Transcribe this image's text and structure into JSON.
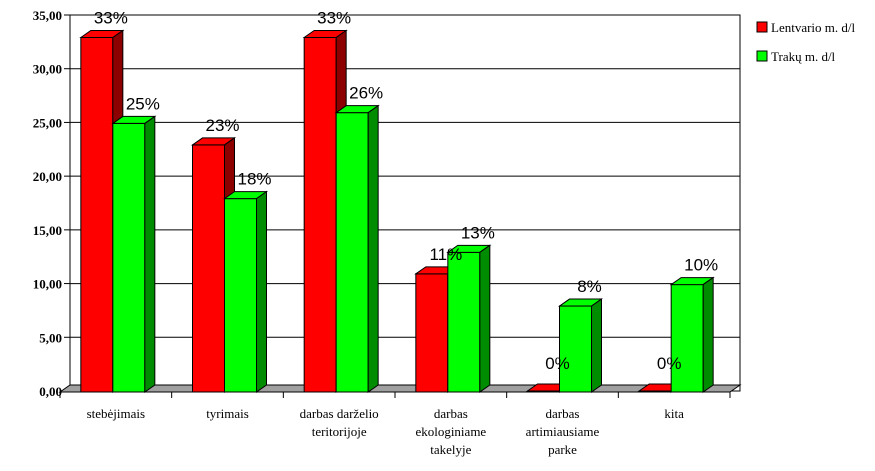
{
  "chart_data": {
    "type": "bar",
    "title": "",
    "xlabel": "",
    "ylabel": "",
    "ylim": [
      0,
      35
    ],
    "y_ticks": [
      "0,00",
      "5,00",
      "10,00",
      "15,00",
      "20,00",
      "25,00",
      "30,00",
      "35,00"
    ],
    "grid": true,
    "legend_position": "right",
    "categories": [
      [
        "stebėjimais"
      ],
      [
        "tyrimais"
      ],
      [
        "darbas darželio",
        "teritorijoje"
      ],
      [
        "darbas",
        "ekologiniame",
        "takelyje"
      ],
      [
        "darbas",
        "artimiausiame",
        "parke"
      ],
      [
        "kita"
      ]
    ],
    "series": [
      {
        "name": "Lentvario m. d/l",
        "color": "#ff0000",
        "values": [
          33,
          23,
          33,
          11,
          0,
          0
        ],
        "labels": [
          "33%",
          "23%",
          "33%",
          "11%",
          "0%",
          "0%"
        ]
      },
      {
        "name": "Trakų m. d/l",
        "color": "#00ff00",
        "values": [
          25,
          18,
          26,
          13,
          8,
          10
        ],
        "labels": [
          "25%",
          "18%",
          "26%",
          "13%",
          "8%",
          "10%"
        ]
      }
    ]
  }
}
